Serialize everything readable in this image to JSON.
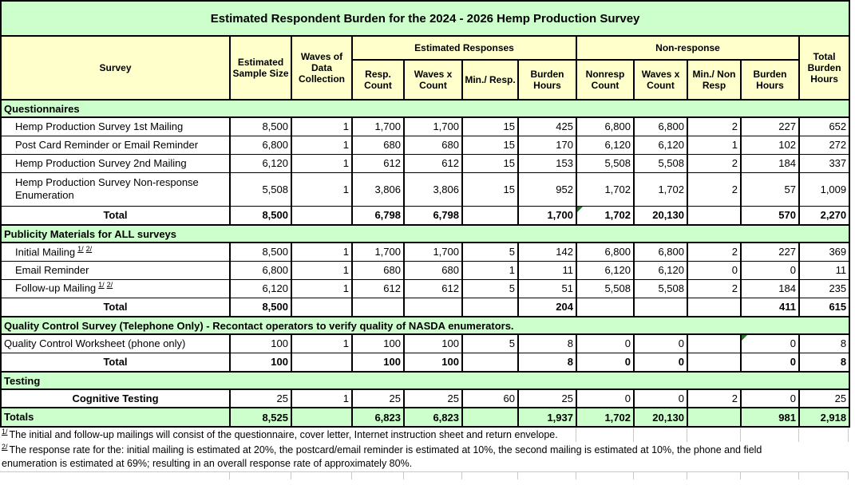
{
  "title": "Estimated Respondent Burden for the 2024 - 2026 Hemp Production Survey",
  "colors": {
    "band_green": "#CCFFCC",
    "header_yellow": "#FFFFCC",
    "comment_marker_green": "#1F7A1F"
  },
  "header": {
    "survey": "Survey",
    "sample": "Estimated Sample Size",
    "waves": "Waves of Data Collection",
    "responses_group": "Estimated Responses",
    "nonresponse_group": "Non-response",
    "total": "Total Burden Hours",
    "sub": [
      "Resp. Count",
      "Waves x Count",
      "Min./ Resp.",
      "Burden Hours",
      "Nonresp Count",
      "Waves x Count",
      "Min./ Non Resp",
      "Burden Hours"
    ]
  },
  "rows": [
    {
      "type": "section",
      "label": "Questionnaires"
    },
    {
      "type": "data",
      "indent": true,
      "label": "Hemp Production Survey 1st Mailing",
      "cells": [
        "8,500",
        "1",
        "1,700",
        "1,700",
        "15",
        "425",
        "6,800",
        "6,800",
        "2",
        "227",
        "652"
      ]
    },
    {
      "type": "data",
      "indent": true,
      "label": "Post Card Reminder or Email Reminder",
      "cells": [
        "6,800",
        "1",
        "680",
        "680",
        "15",
        "170",
        "6,120",
        "6,120",
        "1",
        "102",
        "272"
      ]
    },
    {
      "type": "data",
      "indent": true,
      "label": "Hemp Production Survey 2nd Mailing",
      "cells": [
        "6,120",
        "1",
        "612",
        "612",
        "15",
        "153",
        "5,508",
        "5,508",
        "2",
        "184",
        "337"
      ]
    },
    {
      "type": "data",
      "indent": true,
      "tall": true,
      "label": "Hemp Production Survey Non-response Enumeration",
      "cells": [
        "5,508",
        "1",
        "3,806",
        "3,806",
        "15",
        "952",
        "1,702",
        "1,702",
        "2",
        "57",
        "1,009"
      ]
    },
    {
      "type": "total",
      "label": "Total",
      "marker_cell": 6,
      "cells": [
        "8,500",
        "",
        "6,798",
        "6,798",
        "",
        "1,700",
        "1,702",
        "20,130",
        "",
        "570",
        "2,270"
      ]
    },
    {
      "type": "section",
      "label": "Publicity Materials for ALL surveys"
    },
    {
      "type": "data",
      "indent": true,
      "label": "Initial Mailing",
      "sups": [
        "1/",
        "2/"
      ],
      "cells": [
        "8,500",
        "1",
        "1,700",
        "1,700",
        "5",
        "142",
        "6,800",
        "6,800",
        "2",
        "227",
        "369"
      ]
    },
    {
      "type": "data",
      "indent": true,
      "label": "Email Reminder",
      "cells": [
        "6,800",
        "1",
        "680",
        "680",
        "1",
        "11",
        "6,120",
        "6,120",
        "0",
        "0",
        "11"
      ]
    },
    {
      "type": "data",
      "indent": true,
      "label": "Follow-up Mailing",
      "sups": [
        "1/",
        "2/"
      ],
      "cells": [
        "6,120",
        "1",
        "612",
        "612",
        "5",
        "51",
        "5,508",
        "5,508",
        "2",
        "184",
        "235"
      ]
    },
    {
      "type": "total",
      "label": "Total",
      "cells": [
        "8,500",
        "",
        "",
        "",
        "",
        "204",
        "",
        "",
        "",
        "411",
        "615"
      ]
    },
    {
      "type": "section",
      "label": "Quality Control Survey (Telephone Only) - Recontact operators to verify quality of NASDA enumerators."
    },
    {
      "type": "data",
      "indent": false,
      "label": "Quality Control Worksheet (phone only)",
      "marker_cell": 9,
      "cells": [
        "100",
        "1",
        "100",
        "100",
        "5",
        "8",
        "0",
        "0",
        "",
        "0",
        "8"
      ]
    },
    {
      "type": "total",
      "label": "Total",
      "cells": [
        "100",
        "",
        "100",
        "100",
        "",
        "8",
        "0",
        "0",
        "",
        "0",
        "8"
      ]
    },
    {
      "type": "section",
      "label": "Testing"
    },
    {
      "type": "data",
      "indent": false,
      "label_style": "centerbold",
      "label": "Cognitive Testing",
      "cells": [
        "25",
        "1",
        "25",
        "25",
        "60",
        "25",
        "0",
        "0",
        "2",
        "0",
        "25"
      ]
    },
    {
      "type": "grandtotal",
      "label": "Totals",
      "cells": [
        "8,525",
        "",
        "6,823",
        "6,823",
        "",
        "1,937",
        "1,702",
        "20,130",
        "",
        "981",
        "2,918"
      ]
    }
  ],
  "footnotes": [
    {
      "marker": "1/",
      "text": "The initial and follow-up mailings will consist of the questionnaire, cover letter, Internet instruction sheet and return envelope."
    },
    {
      "marker": "2/",
      "text": "The response rate for the: initial mailing is estimated at 20%, the postcard/email reminder is estimated at 10%, the second mailing is estimated at 10%, the phone and field enumeration is estimated at 69%; resulting in an overall response rate of approximately 80%."
    }
  ]
}
